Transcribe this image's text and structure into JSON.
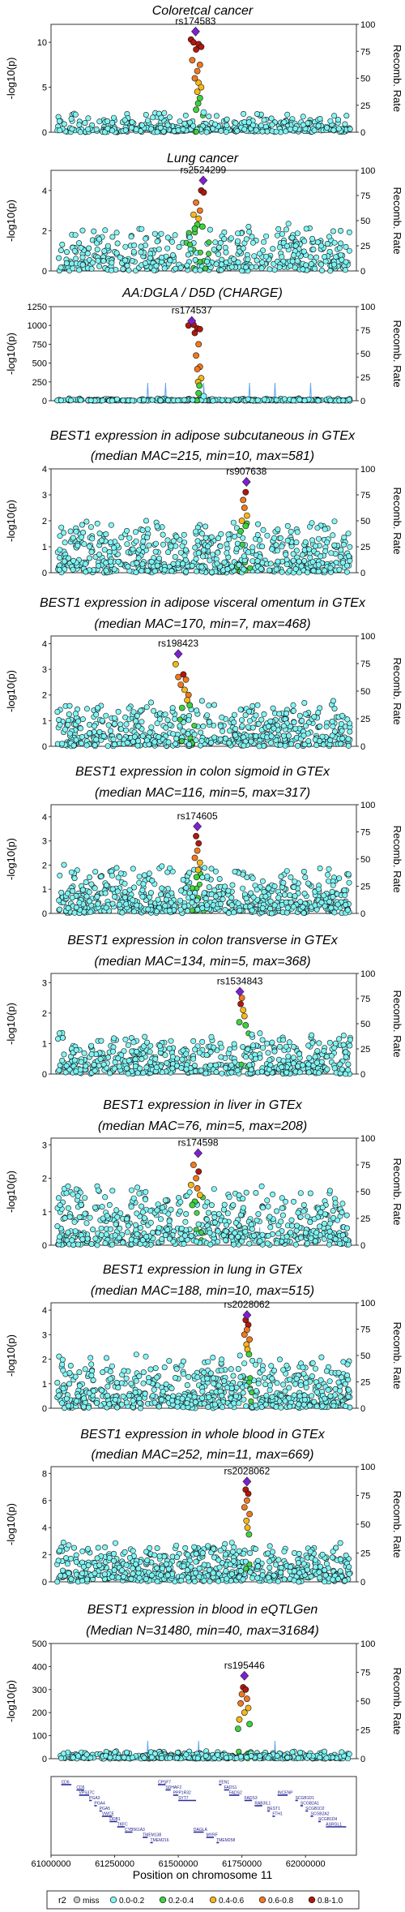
{
  "chart_data": [
    {
      "type": "scatter",
      "title": "Coloretcal cancer",
      "subtitle": "",
      "ylabel": "-log10(p)",
      "y2label": "Recomb. Rate",
      "ylim": [
        0,
        12
      ],
      "yticks": [
        0,
        5,
        10
      ],
      "y2ticks": [
        0,
        25,
        50,
        75,
        100
      ],
      "lead_snp": {
        "name": "rs174583",
        "x": 61568000,
        "y": 11.2
      },
      "peak_x": 61575000,
      "peak_halfwidth": 25000,
      "background": {
        "level": 0.7,
        "spread": 1.1
      },
      "n_points": 380,
      "recomb_peaks": [],
      "points": [
        [
          61550000,
          10.3,
          5
        ],
        [
          61560000,
          10.0,
          5
        ],
        [
          61580000,
          9.8,
          5
        ],
        [
          61590000,
          9.5,
          5
        ],
        [
          61570000,
          9.2,
          5
        ],
        [
          61555000,
          8.0,
          4
        ],
        [
          61585000,
          7.5,
          4
        ],
        [
          61575000,
          6.8,
          4
        ],
        [
          61565000,
          6.0,
          4
        ],
        [
          61580000,
          5.5,
          3
        ],
        [
          61590000,
          5.0,
          3
        ],
        [
          61575000,
          4.5,
          3
        ],
        [
          61585000,
          3.8,
          2
        ],
        [
          61578000,
          3.2,
          2
        ],
        [
          61570000,
          2.5,
          2
        ],
        [
          61600000,
          2.2,
          1
        ]
      ]
    },
    {
      "type": "scatter",
      "title": "Lung cancer",
      "subtitle": "",
      "ylabel": "-log10(p)",
      "y2label": "Recomb. Rate",
      "ylim": [
        0,
        5
      ],
      "yticks": [
        0,
        2,
        4
      ],
      "y2ticks": [
        0,
        25,
        50,
        75,
        100
      ],
      "lead_snp": {
        "name": "rs2524299",
        "x": 61598000,
        "y": 4.5
      },
      "peak_x": 61580000,
      "peak_halfwidth": 50000,
      "background": {
        "level": 0.9,
        "spread": 1.1
      },
      "n_points": 460,
      "recomb_peaks": [],
      "points": [
        [
          61590000,
          4.0,
          5
        ],
        [
          61600000,
          3.9,
          5
        ],
        [
          61570000,
          3.4,
          4
        ],
        [
          61585000,
          3.0,
          4
        ],
        [
          61560000,
          2.8,
          3
        ],
        [
          61580000,
          2.6,
          3
        ],
        [
          61575000,
          2.3,
          2
        ],
        [
          61595000,
          2.2,
          2
        ],
        [
          61565000,
          2.1,
          2
        ]
      ]
    },
    {
      "type": "scatter",
      "title": "AA:DGLA / D5D (CHARGE)",
      "subtitle": "",
      "ylabel": "-log10(p)",
      "y2label": "Recomb. Rate",
      "ylim": [
        0,
        1250
      ],
      "yticks": [
        0,
        250,
        500,
        750,
        1000,
        1250
      ],
      "y2ticks": [
        0,
        25,
        50,
        75,
        100
      ],
      "lead_snp": {
        "name": "rs174537",
        "x": 61553000,
        "y": 1060
      },
      "peak_x": 61575000,
      "peak_halfwidth": 25000,
      "background": {
        "level": 8,
        "spread": 18
      },
      "n_points": 340,
      "recomb_peaks": [
        61380000,
        61450000,
        61600000,
        61780000,
        61880000,
        62020000
      ],
      "points": [
        [
          61540000,
          1000,
          5
        ],
        [
          61560000,
          1010,
          5
        ],
        [
          61575000,
          960,
          5
        ],
        [
          61585000,
          950,
          5
        ],
        [
          61565000,
          900,
          5
        ],
        [
          61580000,
          750,
          4
        ],
        [
          61570000,
          600,
          4
        ],
        [
          61585000,
          450,
          4
        ],
        [
          61575000,
          420,
          4
        ],
        [
          61590000,
          300,
          3
        ],
        [
          61578000,
          250,
          3
        ],
        [
          61583000,
          200,
          2
        ],
        [
          61580000,
          100,
          2
        ],
        [
          61600000,
          60,
          1
        ]
      ]
    },
    {
      "type": "scatter",
      "title": "BEST1 expression in adipose subcutaneous in GTEx",
      "subtitle": "(median MAC=215, min=10, max=581)",
      "ylabel": "-log10(p)",
      "y2label": "Recomb. Rate",
      "ylim": [
        0,
        4
      ],
      "yticks": [
        0,
        1,
        2,
        3,
        4
      ],
      "y2ticks": [
        0,
        25,
        50,
        75,
        100
      ],
      "lead_snp": {
        "name": "rs907638",
        "x": 61768000,
        "y": 3.5
      },
      "peak_x": 61760000,
      "peak_halfwidth": 30000,
      "background": {
        "level": 0.8,
        "spread": 0.9
      },
      "n_points": 620,
      "recomb_peaks": [],
      "points": [
        [
          61765000,
          3.1,
          5
        ],
        [
          61755000,
          2.8,
          4
        ],
        [
          61760000,
          2.5,
          4
        ],
        [
          61770000,
          2.2,
          3
        ],
        [
          61750000,
          2.0,
          3
        ],
        [
          61765000,
          1.8,
          2
        ],
        [
          61745000,
          1.6,
          2
        ]
      ]
    },
    {
      "type": "scatter",
      "title": "BEST1 expression in adipose visceral omentum in GTEx",
      "subtitle": "(median MAC=170, min=7, max=468)",
      "ylabel": "-log10(p)",
      "y2label": "Recomb. Rate",
      "ylim": [
        0,
        4.3
      ],
      "yticks": [
        0,
        1,
        2,
        3,
        4
      ],
      "y2ticks": [
        0,
        25,
        50,
        75,
        100
      ],
      "lead_snp": {
        "name": "rs198423",
        "x": 61500000,
        "y": 3.6
      },
      "peak_x": 61530000,
      "peak_halfwidth": 35000,
      "background": {
        "level": 0.7,
        "spread": 0.8
      },
      "n_points": 560,
      "recomb_peaks": [],
      "points": [
        [
          61490000,
          3.2,
          3
        ],
        [
          61520000,
          2.8,
          5
        ],
        [
          61500000,
          2.7,
          4
        ],
        [
          61530000,
          2.6,
          4
        ],
        [
          61510000,
          2.4,
          4
        ],
        [
          61525000,
          2.2,
          3
        ],
        [
          61540000,
          2.0,
          4
        ],
        [
          61535000,
          1.8,
          3
        ],
        [
          61545000,
          1.6,
          2
        ],
        [
          61515000,
          1.5,
          2
        ]
      ]
    },
    {
      "type": "scatter",
      "title": "BEST1 expression in colon sigmoid in GTEx",
      "subtitle": "(median MAC=116, min=5, max=317)",
      "ylabel": "-log10(p)",
      "y2label": "Recomb. Rate",
      "ylim": [
        0,
        4.5
      ],
      "yticks": [
        0,
        1,
        2,
        3,
        4
      ],
      "y2ticks": [
        0,
        25,
        50,
        75,
        100
      ],
      "lead_snp": {
        "name": "rs174605",
        "x": 61575000,
        "y": 3.6
      },
      "peak_x": 61575000,
      "peak_halfwidth": 25000,
      "background": {
        "level": 0.8,
        "spread": 0.9
      },
      "n_points": 640,
      "recomb_peaks": [],
      "points": [
        [
          61570000,
          3.2,
          5
        ],
        [
          61580000,
          2.9,
          5
        ],
        [
          61575000,
          2.6,
          4
        ],
        [
          61565000,
          2.3,
          4
        ],
        [
          61585000,
          2.1,
          3
        ],
        [
          61578000,
          1.8,
          3
        ],
        [
          61572000,
          1.5,
          2
        ]
      ]
    },
    {
      "type": "scatter",
      "title": "BEST1 expression in colon transverse in GTEx",
      "subtitle": "(median MAC=134, min=5, max=368)",
      "ylabel": "-log10(p)",
      "y2label": "Recomb. Rate",
      "ylim": [
        0,
        3.3
      ],
      "yticks": [
        0,
        1,
        2,
        3
      ],
      "y2ticks": [
        0,
        25,
        50,
        75,
        100
      ],
      "lead_snp": {
        "name": "rs1534843",
        "x": 61742000,
        "y": 2.7
      },
      "peak_x": 61750000,
      "peak_halfwidth": 30000,
      "background": {
        "level": 0.55,
        "spread": 0.65
      },
      "n_points": 560,
      "recomb_peaks": [],
      "points": [
        [
          61750000,
          2.5,
          4
        ],
        [
          61745000,
          2.3,
          5
        ],
        [
          61755000,
          2.1,
          3
        ],
        [
          61760000,
          1.9,
          3
        ],
        [
          61740000,
          1.7,
          2
        ],
        [
          61765000,
          1.6,
          2
        ]
      ]
    },
    {
      "type": "scatter",
      "title": "BEST1 expression in liver in GTEx",
      "subtitle": "(median MAC=76, min=5, max=208)",
      "ylabel": "-log10(p)",
      "y2label": "Recomb. Rate",
      "ylim": [
        0,
        3.2
      ],
      "yticks": [
        0,
        1,
        2,
        3
      ],
      "y2ticks": [
        0,
        25,
        50,
        75,
        100
      ],
      "lead_snp": {
        "name": "rs174598",
        "x": 61578000,
        "y": 2.75
      },
      "peak_x": 61570000,
      "peak_halfwidth": 30000,
      "background": {
        "level": 0.7,
        "spread": 0.8
      },
      "n_points": 600,
      "recomb_peaks": [
        61710000,
        61820000
      ],
      "points": [
        [
          61560000,
          2.4,
          4
        ],
        [
          61580000,
          2.2,
          5
        ],
        [
          61570000,
          2.0,
          4
        ],
        [
          61550000,
          1.8,
          3
        ],
        [
          61575000,
          1.7,
          4
        ],
        [
          61585000,
          1.5,
          3
        ],
        [
          61565000,
          1.3,
          2
        ],
        [
          61555000,
          1.2,
          2
        ]
      ]
    },
    {
      "type": "scatter",
      "title": "BEST1 expression in lung in GTEx",
      "subtitle": "(median MAC=188, min=10, max=515)",
      "ylabel": "-log10(p)",
      "y2label": "Recomb. Rate",
      "ylim": [
        0,
        4.3
      ],
      "yticks": [
        0,
        1,
        2,
        3,
        4
      ],
      "y2ticks": [
        0,
        25,
        50,
        75,
        100
      ],
      "lead_snp": {
        "name": "rs2028062",
        "x": 61770000,
        "y": 3.8
      },
      "peak_x": 61770000,
      "peak_halfwidth": 25000,
      "background": {
        "level": 0.9,
        "spread": 0.95
      },
      "n_points": 640,
      "recomb_peaks": [],
      "points": [
        [
          61765000,
          3.6,
          5
        ],
        [
          61775000,
          3.4,
          5
        ],
        [
          61770000,
          3.2,
          4
        ],
        [
          61760000,
          3.0,
          4
        ],
        [
          61780000,
          2.8,
          4
        ],
        [
          61768000,
          2.6,
          3
        ],
        [
          61772000,
          2.4,
          3
        ],
        [
          61778000,
          2.2,
          2
        ]
      ]
    },
    {
      "type": "scatter",
      "title": "BEST1 expression in whole blood in GTEx",
      "subtitle": "(median MAC=252, min=11, max=669)",
      "ylabel": "-log10(p)",
      "y2label": "Recomb. Rate",
      "ylim": [
        0,
        8.5
      ],
      "yticks": [
        0,
        2,
        4,
        6,
        8
      ],
      "y2ticks": [
        0,
        25,
        50,
        75,
        100
      ],
      "lead_snp": {
        "name": "rs2028062",
        "x": 61770000,
        "y": 7.4
      },
      "peak_x": 61770000,
      "peak_halfwidth": 25000,
      "background": {
        "level": 1.3,
        "spread": 1.3
      },
      "n_points": 640,
      "recomb_peaks": [],
      "points": [
        [
          61765000,
          6.8,
          5
        ],
        [
          61775000,
          6.5,
          5
        ],
        [
          61770000,
          6.0,
          4
        ],
        [
          61760000,
          5.5,
          4
        ],
        [
          61780000,
          5.0,
          4
        ],
        [
          61768000,
          4.5,
          3
        ],
        [
          61772000,
          4.0,
          3
        ],
        [
          61778000,
          3.5,
          2
        ]
      ]
    },
    {
      "type": "scatter",
      "title": "BEST1 expression in blood in eQTLGen",
      "subtitle": "(Median N=31480, min=40, max=31684)",
      "ylabel": "-log10(p)",
      "y2label": "Recomb. Rate",
      "ylim": [
        0,
        500
      ],
      "yticks": [
        0,
        100,
        200,
        300,
        400,
        500
      ],
      "y2ticks": [
        0,
        25,
        50,
        75,
        100
      ],
      "lead_snp": {
        "name": "rs195446",
        "x": 61760000,
        "y": 360
      },
      "peak_x": 61760000,
      "peak_halfwidth": 30000,
      "background": {
        "level": 10,
        "spread": 18
      },
      "n_points": 420,
      "recomb_peaks": [
        61380000,
        61580000,
        61880000
      ],
      "points": [
        [
          61755000,
          310,
          5
        ],
        [
          61765000,
          300,
          5
        ],
        [
          61750000,
          280,
          4
        ],
        [
          61770000,
          260,
          4
        ],
        [
          61745000,
          240,
          4
        ],
        [
          61775000,
          220,
          3
        ],
        [
          61760000,
          200,
          3
        ],
        [
          61740000,
          170,
          3
        ],
        [
          61780000,
          150,
          2
        ],
        [
          61735000,
          130,
          2
        ]
      ]
    }
  ],
  "genes": [
    {
      "name": "CD6",
      "start": 61040000,
      "end": 61080000,
      "row": 0
    },
    {
      "name": "CD5",
      "start": 61100000,
      "end": 61130000,
      "row": 1
    },
    {
      "name": "VPS37C",
      "start": 61110000,
      "end": 61150000,
      "row": 2
    },
    {
      "name": "PGA3",
      "start": 61150000,
      "end": 61160000,
      "row": 3
    },
    {
      "name": "PGA4",
      "start": 61170000,
      "end": 61180000,
      "row": 4
    },
    {
      "name": "PGA5",
      "start": 61190000,
      "end": 61200000,
      "row": 5
    },
    {
      "name": "VWCE",
      "start": 61200000,
      "end": 61240000,
      "row": 6
    },
    {
      "name": "DDB1",
      "start": 61230000,
      "end": 61260000,
      "row": 7
    },
    {
      "name": "TKFC",
      "start": 61260000,
      "end": 61290000,
      "row": 8
    },
    {
      "name": "CYB561A3",
      "start": 61290000,
      "end": 61320000,
      "row": 9
    },
    {
      "name": "TMEM138",
      "start": 61360000,
      "end": 61380000,
      "row": 10
    },
    {
      "name": "TMEM216",
      "start": 61390000,
      "end": 61400000,
      "row": 11
    },
    {
      "name": "CPSF7",
      "start": 61420000,
      "end": 61450000,
      "row": 0
    },
    {
      "name": "SDHAF2",
      "start": 61450000,
      "end": 61470000,
      "row": 1
    },
    {
      "name": "PPP1R32",
      "start": 61480000,
      "end": 61500000,
      "row": 2
    },
    {
      "name": "SYT7",
      "start": 61500000,
      "end": 61570000,
      "row": 3
    },
    {
      "name": "DAGLA",
      "start": 61560000,
      "end": 61600000,
      "row": 9
    },
    {
      "name": "MYRF",
      "start": 61610000,
      "end": 61640000,
      "row": 10
    },
    {
      "name": "TMEM258",
      "start": 61650000,
      "end": 61660000,
      "row": 11
    },
    {
      "name": "FEN1",
      "start": 61660000,
      "end": 61670000,
      "row": 0
    },
    {
      "name": "FADS1",
      "start": 61680000,
      "end": 61700000,
      "row": 1
    },
    {
      "name": "FADS2",
      "start": 61700000,
      "end": 61740000,
      "row": 2
    },
    {
      "name": "FADS3",
      "start": 61760000,
      "end": 61790000,
      "row": 3
    },
    {
      "name": "RAB3IL1",
      "start": 61800000,
      "end": 61830000,
      "row": 4
    },
    {
      "name": "BEST1",
      "start": 61850000,
      "end": 61860000,
      "row": 5
    },
    {
      "name": "FTH1",
      "start": 61870000,
      "end": 61880000,
      "row": 6
    },
    {
      "name": "INCENP",
      "start": 61890000,
      "end": 61930000,
      "row": 2
    },
    {
      "name": "SCGB1D1",
      "start": 61960000,
      "end": 61970000,
      "row": 3
    },
    {
      "name": "SCGB2A1",
      "start": 61980000,
      "end": 61990000,
      "row": 4
    },
    {
      "name": "SCGB1D2",
      "start": 62000000,
      "end": 62010000,
      "row": 5
    },
    {
      "name": "SCGB2A2",
      "start": 62020000,
      "end": 62030000,
      "row": 6
    },
    {
      "name": "SCGB1D4",
      "start": 62050000,
      "end": 62060000,
      "row": 7
    },
    {
      "name": "ASRGL1",
      "start": 62080000,
      "end": 62160000,
      "row": 8
    }
  ],
  "x_axis": {
    "label": "Position on chromosome 11",
    "ticks": [
      "61000000",
      "61250000",
      "61500000",
      "61750000",
      "62000000"
    ],
    "xlim": [
      61000000,
      62200000
    ]
  },
  "legend": {
    "title": "r2",
    "items": [
      {
        "label": "miss",
        "color": "#c8c8c8"
      },
      {
        "label": "0.0-0.2",
        "color": "#7ff6f6"
      },
      {
        "label": "0.2-0.4",
        "color": "#3ed23e"
      },
      {
        "label": "0.4-0.6",
        "color": "#f7b619"
      },
      {
        "label": "0.6-0.8",
        "color": "#f0781e"
      },
      {
        "label": "0.8-1.0",
        "color": "#b0180f"
      }
    ]
  },
  "colors": {
    "lead": "#7e1fd2",
    "recomb": "#5ea6f2",
    "frame": "#333333"
  }
}
